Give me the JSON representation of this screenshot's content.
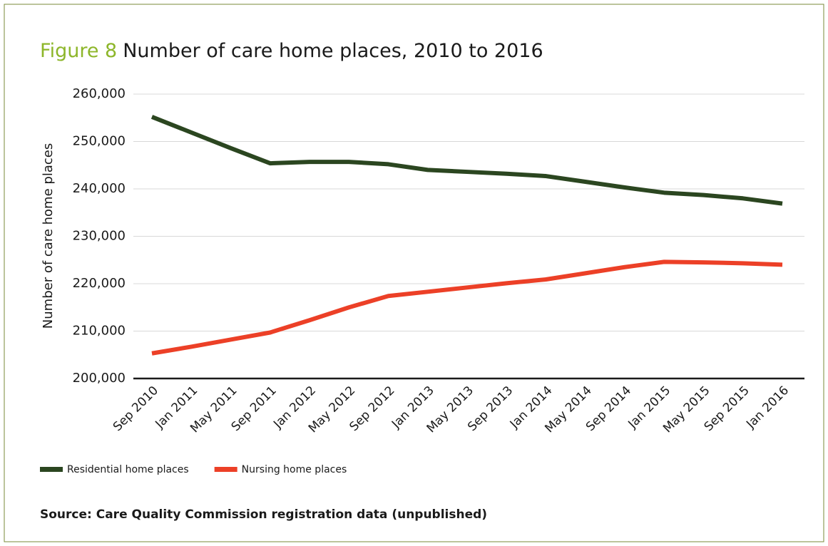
{
  "chart_data": {
    "type": "line",
    "figure_label": "Figure 8",
    "title": "Number of care home places, 2010 to 2016",
    "y_label": "Number of care home places",
    "source": "Source: Care Quality Commission registration data (unpublished)",
    "categories": [
      "Sep 2010",
      "Jan 2011",
      "May 2011",
      "Sep 2011",
      "Jan 2012",
      "May 2012",
      "Sep 2012",
      "Jan 2013",
      "May 2013",
      "Sep 2013",
      "Jan 2014",
      "May 2014",
      "Sep 2014",
      "Jan 2015",
      "May 2015",
      "Sep 2015",
      "Jan 2016"
    ],
    "series": [
      {
        "name": "Residential home places",
        "color": "#2b4620",
        "values": [
          255200,
          251900,
          248600,
          245400,
          245700,
          245700,
          245200,
          244000,
          243600,
          243200,
          242700,
          241500,
          240300,
          239200,
          238700,
          238000,
          236900
        ]
      },
      {
        "name": "Nursing home places",
        "color": "#ec4027",
        "values": [
          205300,
          206700,
          208200,
          209700,
          212300,
          215000,
          217400,
          218300,
          219200,
          220100,
          220900,
          222200,
          223500,
          224600,
          224500,
          224300,
          224000
        ]
      }
    ],
    "ylim": [
      200000,
      260000
    ],
    "yticks": [
      {
        "value": 200000,
        "label": "200,000"
      },
      {
        "value": 210000,
        "label": "210,000"
      },
      {
        "value": 220000,
        "label": "220,000"
      },
      {
        "value": 230000,
        "label": "230,000"
      },
      {
        "value": 240000,
        "label": "240,000"
      },
      {
        "value": 250000,
        "label": "250,000"
      },
      {
        "value": 260000,
        "label": "260,000"
      }
    ],
    "grid": true,
    "legend": "bottom-left",
    "title_color": "#8db62a"
  }
}
